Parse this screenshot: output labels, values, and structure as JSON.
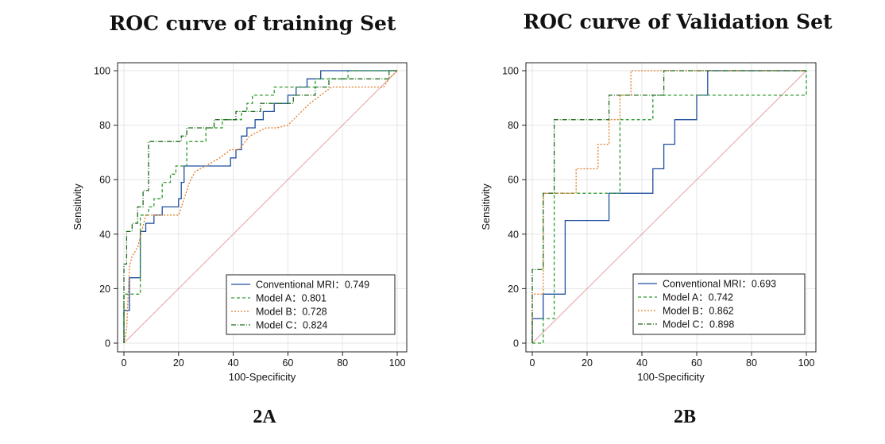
{
  "chart_data": [
    {
      "type": "line",
      "title": "ROC curve of training Set",
      "panel_label": "2A",
      "xlabel": "100-Specificity",
      "ylabel": "Sensitivity",
      "xlim": [
        0,
        100
      ],
      "ylim": [
        0,
        100
      ],
      "xticks": [
        0,
        20,
        40,
        60,
        80,
        100
      ],
      "yticks": [
        0,
        20,
        40,
        60,
        80,
        100
      ],
      "grid": true,
      "legend_position": "bottom-right",
      "reference_line": {
        "x": [
          0,
          100
        ],
        "y": [
          0,
          100
        ],
        "color": "#e8a0a0"
      },
      "series": [
        {
          "name": "Conventional MRI",
          "auc": "0.749",
          "legend_label": "Conventional MRI：0.749",
          "color": "#1f4e9c",
          "dash": "solid",
          "x": [
            0,
            0,
            2,
            2,
            6,
            6,
            8,
            8,
            11,
            11,
            14,
            14,
            20,
            20,
            21,
            21,
            22,
            22,
            39,
            39,
            41,
            41,
            43,
            43,
            45,
            45,
            48,
            48,
            51,
            51,
            55,
            55,
            60,
            60,
            63,
            63,
            67,
            67,
            72,
            72,
            75,
            75,
            79,
            79,
            100
          ],
          "y": [
            0,
            12,
            12,
            24,
            24,
            41,
            41,
            44,
            44,
            47,
            47,
            50,
            50,
            53,
            53,
            59,
            59,
            65,
            65,
            68,
            68,
            71,
            71,
            76,
            76,
            79,
            79,
            82,
            82,
            85,
            85,
            88,
            88,
            91,
            91,
            94,
            94,
            97,
            97,
            100,
            100,
            100,
            100,
            100,
            100
          ]
        },
        {
          "name": "Model A",
          "auc": "0.801",
          "legend_label": "Model A：0.801",
          "color": "#2e9a2e",
          "dash": "4,3",
          "x": [
            0,
            0,
            1,
            1,
            3,
            3,
            6,
            6,
            9,
            9,
            11,
            11,
            14,
            14,
            17,
            17,
            19,
            19,
            23,
            23,
            30,
            30,
            36,
            36,
            43,
            43,
            45,
            45,
            47,
            47,
            55,
            55,
            63,
            63,
            70,
            70,
            82,
            82,
            90,
            90,
            100
          ],
          "y": [
            0,
            18,
            18,
            18,
            18,
            18,
            18,
            47,
            47,
            50,
            50,
            53,
            53,
            59,
            59,
            62,
            62,
            65,
            65,
            74,
            74,
            79,
            79,
            82,
            82,
            85,
            85,
            88,
            88,
            91,
            91,
            94,
            94,
            94,
            94,
            97,
            97,
            100,
            100,
            100,
            100
          ]
        },
        {
          "name": "Model B",
          "auc": "0.728",
          "legend_label": "Model B：0.728",
          "color": "#e07b24",
          "dash": "2,2",
          "x": [
            0,
            1,
            2,
            3,
            5,
            8,
            12,
            16,
            19,
            20,
            21,
            22,
            24,
            26,
            30,
            35,
            39,
            42,
            46,
            52,
            56,
            60,
            65,
            68,
            72,
            76,
            80,
            85,
            90,
            95,
            97,
            100
          ],
          "y": [
            0,
            5,
            28,
            32,
            35,
            47,
            47,
            47,
            47,
            47,
            50,
            53,
            59,
            63,
            65,
            68,
            71,
            71,
            76,
            79,
            79,
            80,
            85,
            88,
            91,
            94,
            94,
            94,
            94,
            94,
            97,
            100
          ]
        },
        {
          "name": "Model C",
          "auc": "0.824",
          "legend_label": "Model C：0.824",
          "color": "#1e6b1e",
          "dash": "6,2,1,2",
          "x": [
            0,
            0,
            1,
            1,
            3,
            3,
            5,
            5,
            7,
            7,
            9,
            9,
            21,
            21,
            23,
            23,
            28,
            28,
            33,
            33,
            41,
            41,
            50,
            50,
            62,
            62,
            70,
            70,
            75,
            75,
            88,
            88,
            97,
            97,
            100
          ],
          "y": [
            0,
            29,
            29,
            41,
            41,
            44,
            44,
            50,
            50,
            56,
            56,
            74,
            74,
            76,
            76,
            79,
            79,
            79,
            79,
            82,
            82,
            85,
            85,
            88,
            88,
            91,
            91,
            94,
            94,
            97,
            97,
            97,
            97,
            100,
            100
          ]
        }
      ]
    },
    {
      "type": "line",
      "title": "ROC curve of Validation Set",
      "panel_label": "2B",
      "xlabel": "100-Specificity",
      "ylabel": "Sensitivity",
      "xlim": [
        0,
        100
      ],
      "ylim": [
        0,
        100
      ],
      "xticks": [
        0,
        20,
        40,
        60,
        80,
        100
      ],
      "yticks": [
        0,
        20,
        40,
        60,
        80,
        100
      ],
      "grid": true,
      "legend_position": "bottom-right",
      "reference_line": {
        "x": [
          0,
          100
        ],
        "y": [
          0,
          100
        ],
        "color": "#e8a0a0"
      },
      "series": [
        {
          "name": "Conventional MRI",
          "auc": "0.693",
          "legend_label": "Conventional MRI：0.693",
          "color": "#1f4e9c",
          "dash": "solid",
          "x": [
            0,
            0,
            4,
            4,
            12,
            12,
            28,
            28,
            32,
            32,
            44,
            44,
            48,
            48,
            52,
            52,
            60,
            60,
            64,
            64,
            100
          ],
          "y": [
            0,
            9,
            9,
            18,
            18,
            45,
            45,
            55,
            55,
            55,
            55,
            64,
            64,
            73,
            73,
            82,
            82,
            91,
            91,
            100,
            100
          ]
        },
        {
          "name": "Model A",
          "auc": "0.742",
          "legend_label": "Model A：0.742",
          "color": "#2e9a2e",
          "dash": "4,3",
          "x": [
            0,
            0,
            4,
            4,
            8,
            8,
            32,
            32,
            44,
            44,
            100,
            100
          ],
          "y": [
            0,
            0,
            0,
            9,
            9,
            55,
            55,
            82,
            82,
            91,
            91,
            100
          ]
        },
        {
          "name": "Model B",
          "auc": "0.862",
          "legend_label": "Model B：0.862",
          "color": "#e07b24",
          "dash": "2,2",
          "x": [
            0,
            0,
            4,
            4,
            12,
            12,
            16,
            16,
            24,
            24,
            28,
            28,
            32,
            32,
            36,
            36,
            100
          ],
          "y": [
            0,
            18,
            18,
            55,
            55,
            55,
            55,
            64,
            64,
            73,
            73,
            82,
            82,
            91,
            91,
            100,
            100
          ]
        },
        {
          "name": "Model C",
          "auc": "0.898",
          "legend_label": "Model C：0.898",
          "color": "#1e6b1e",
          "dash": "6,2,1,2",
          "x": [
            0,
            0,
            4,
            4,
            8,
            8,
            28,
            28,
            48,
            48,
            100
          ],
          "y": [
            0,
            27,
            27,
            55,
            55,
            82,
            82,
            91,
            91,
            100,
            100
          ]
        }
      ]
    }
  ]
}
